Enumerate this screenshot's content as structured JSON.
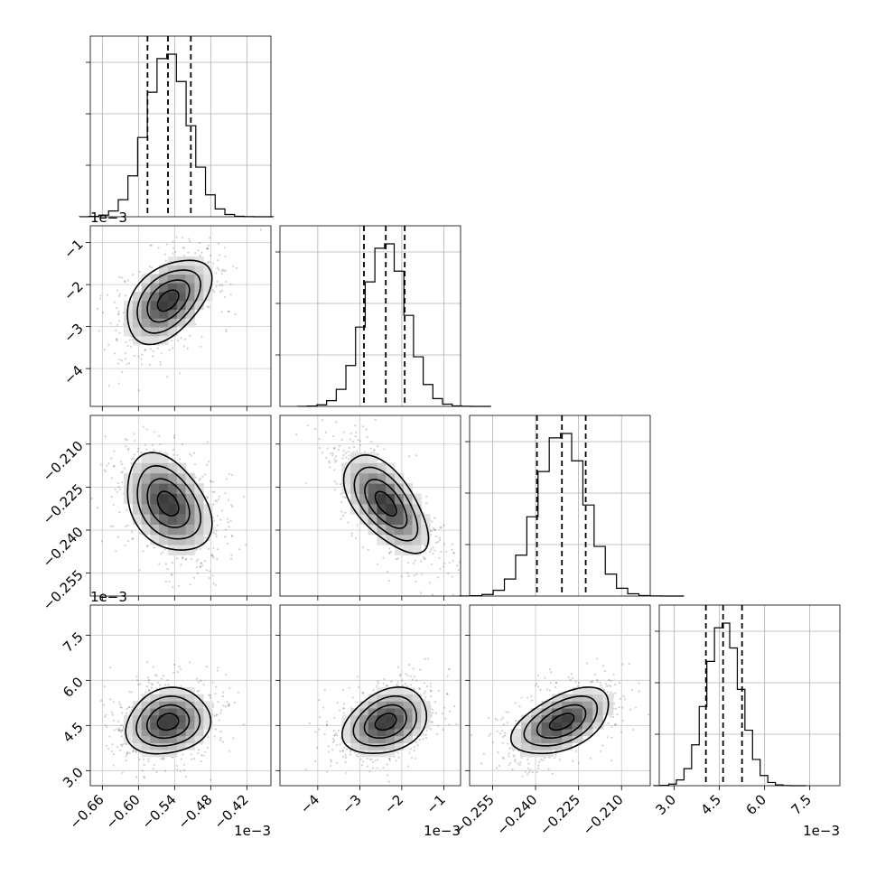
{
  "chart_data": {
    "type": "corner",
    "parameters": [
      {
        "range": [
          -0.68,
          -0.38
        ],
        "ticks": [
          -0.66,
          -0.6,
          -0.54,
          -0.48,
          -0.42
        ],
        "tick_labels": [
          "−0.66",
          "−0.60",
          "−0.54",
          "−0.48",
          "−0.42"
        ],
        "offset": "1e−3",
        "quantiles": [
          -0.585,
          -0.551,
          -0.513
        ],
        "median": -0.551,
        "sigma": 0.035
      },
      {
        "range": [
          -4.9,
          -0.6
        ],
        "ticks": [
          -4,
          -3,
          -2,
          -1
        ],
        "tick_labels": [
          "−4",
          "−3",
          "−2",
          "−1"
        ],
        "offset": "1e−3",
        "quantiles": [
          -2.9,
          -2.38,
          -1.93
        ],
        "median": -2.38,
        "sigma": 0.5
      },
      {
        "range": [
          -0.263,
          -0.2
        ],
        "ticks": [
          -0.255,
          -0.24,
          -0.225,
          -0.21
        ],
        "tick_labels": [
          "−0.255",
          "−0.240",
          "−0.225",
          "−0.210"
        ],
        "offset": "",
        "quantiles": [
          -0.2395,
          -0.2308,
          -0.2225
        ],
        "median": -0.2308,
        "sigma": 0.0085
      },
      {
        "range": [
          2.5,
          8.5
        ],
        "ticks": [
          3.0,
          4.5,
          6.0,
          7.5
        ],
        "tick_labels": [
          "3.0",
          "4.5",
          "6.0",
          "7.5"
        ],
        "offset": "1e−3",
        "quantiles": [
          4.05,
          4.62,
          5.25
        ],
        "median": 4.62,
        "sigma": 0.55
      }
    ],
    "correlations": [
      {
        "pair": [
          1,
          0
        ],
        "rho": 0.45
      },
      {
        "pair": [
          2,
          0
        ],
        "rho": -0.35
      },
      {
        "pair": [
          2,
          1
        ],
        "rho": -0.6
      },
      {
        "pair": [
          3,
          0
        ],
        "rho": 0.15
      },
      {
        "pair": [
          3,
          1
        ],
        "rho": 0.3
      },
      {
        "pair": [
          3,
          2
        ],
        "rho": 0.5
      }
    ],
    "histogram_bins": 20,
    "contour_levels_sigma": [
      0.5,
      1.0,
      1.5,
      2.0
    ],
    "grid": true,
    "quantile_line_style": "dashed"
  }
}
